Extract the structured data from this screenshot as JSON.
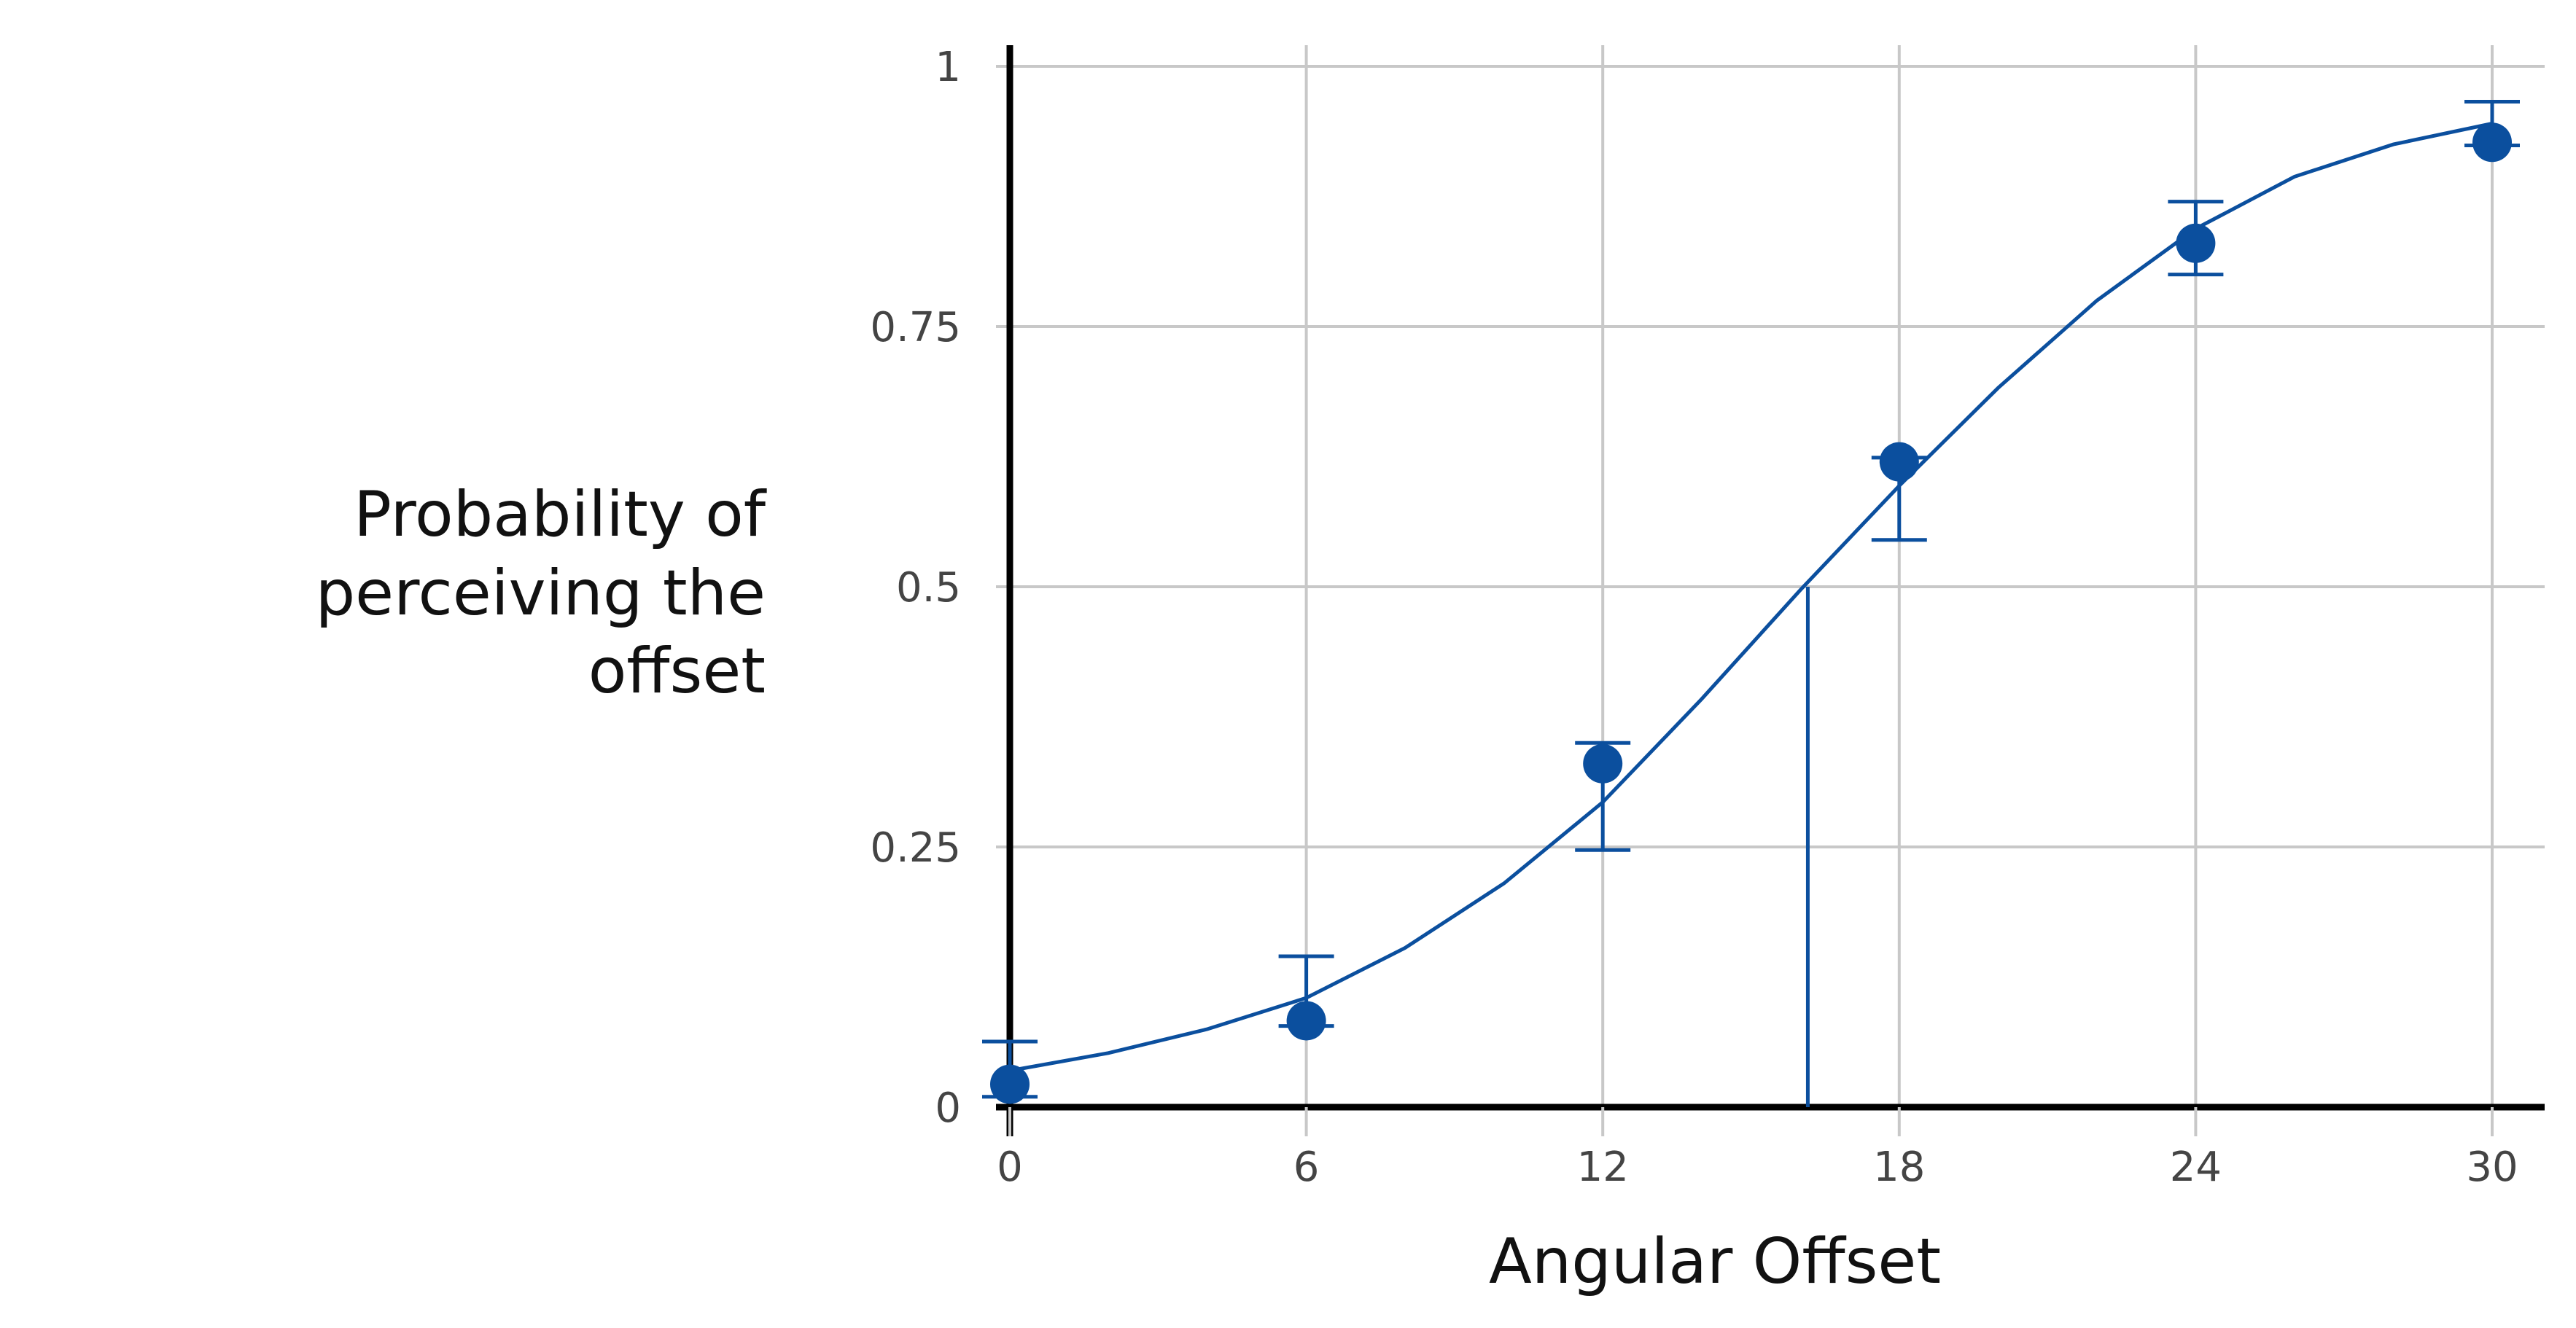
{
  "chart_data": {
    "type": "scatter",
    "title": "",
    "xlabel": "Angular Offset",
    "ylabel": [
      "Probability of",
      "perceiving the",
      "offset"
    ],
    "xlim": [
      -0.3,
      31
    ],
    "ylim": [
      0,
      1.02
    ],
    "x_ticks": [
      0,
      6,
      12,
      18,
      24,
      30
    ],
    "x_tick_labels": [
      "0",
      "6",
      "12",
      "18",
      "24",
      "30"
    ],
    "y_ticks": [
      0,
      0.25,
      0.5,
      0.75,
      1
    ],
    "y_tick_labels": [
      "0",
      "0.25",
      "0.5",
      "0.75",
      "1"
    ],
    "grid": true,
    "points": [
      {
        "x": 0,
        "y": 0.022,
        "err_low": 0.01,
        "err_high": 0.063
      },
      {
        "x": 6,
        "y": 0.083,
        "err_low": 0.078,
        "err_high": 0.145
      },
      {
        "x": 12,
        "y": 0.33,
        "err_low": 0.247,
        "err_high": 0.35
      },
      {
        "x": 18,
        "y": 0.62,
        "err_low": 0.545,
        "err_high": 0.624
      },
      {
        "x": 24,
        "y": 0.83,
        "err_low": 0.8,
        "err_high": 0.87
      },
      {
        "x": 30,
        "y": 0.927,
        "err_low": 0.924,
        "err_high": 0.966
      }
    ],
    "fit_curve": {
      "x": [
        0,
        2,
        4,
        6,
        8,
        10,
        12,
        14,
        16,
        18,
        20,
        22,
        24,
        26,
        28,
        30
      ],
      "y": [
        0.035,
        0.052,
        0.075,
        0.105,
        0.153,
        0.215,
        0.293,
        0.392,
        0.497,
        0.597,
        0.691,
        0.775,
        0.844,
        0.894,
        0.925,
        0.945
      ]
    },
    "threshold": {
      "x": 16.15,
      "y": 0.5
    },
    "colors": {
      "series": "#0b4f9e",
      "grid": "#c8c8c8",
      "axis": "#000000"
    }
  }
}
